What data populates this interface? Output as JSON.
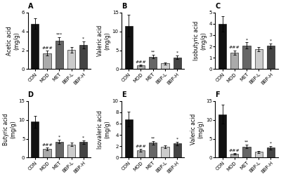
{
  "chart_data": [
    {
      "type": "bar",
      "title": "A",
      "ylabel": "Acetic acid\n(mg/g)",
      "categories": [
        "CON",
        "MOD",
        "MET",
        "BBP-L",
        "BBP-H"
      ],
      "values": [
        4.8,
        1.7,
        3.0,
        2.05,
        2.55
      ],
      "errors": [
        0.55,
        0.25,
        0.35,
        0.3,
        0.35
      ],
      "colors": [
        "#111111",
        "#aaaaaa",
        "#666666",
        "#cccccc",
        "#444444"
      ],
      "ylim": [
        0,
        6
      ],
      "yticks": [
        0,
        2,
        4,
        6
      ],
      "grid": false,
      "annotations": [
        {
          "category": "MOD",
          "text": "###"
        },
        {
          "category": "MET",
          "text": "***"
        },
        {
          "category": "BBP-H",
          "text": "*"
        }
      ]
    },
    {
      "type": "bar",
      "title": "B",
      "ylabel": "Valeric acid\n(mg/g)",
      "categories": [
        "CON",
        "MOD",
        "MET",
        "BBP-L",
        "BBP-H"
      ],
      "values": [
        11.5,
        1.0,
        3.3,
        1.5,
        3.1
      ],
      "errors": [
        2.8,
        0.2,
        0.5,
        0.3,
        0.5
      ],
      "colors": [
        "#111111",
        "#aaaaaa",
        "#666666",
        "#cccccc",
        "#444444"
      ],
      "ylim": [
        0,
        15
      ],
      "yticks": [
        0,
        5,
        10,
        15
      ],
      "grid": false,
      "annotations": [
        {
          "category": "MOD",
          "text": "###"
        },
        {
          "category": "MET",
          "text": "**"
        },
        {
          "category": "BBP-H",
          "text": "*"
        }
      ]
    },
    {
      "type": "bar",
      "title": "C",
      "ylabel": "Isobutyric acid\n(mg/g)",
      "categories": [
        "CON",
        "MOD",
        "MET",
        "BBP-L",
        "BBP-H"
      ],
      "values": [
        4.0,
        1.45,
        2.1,
        1.75,
        2.05
      ],
      "errors": [
        0.7,
        0.2,
        0.25,
        0.2,
        0.2
      ],
      "colors": [
        "#111111",
        "#aaaaaa",
        "#666666",
        "#cccccc",
        "#444444"
      ],
      "ylim": [
        0,
        5
      ],
      "yticks": [
        0,
        1,
        2,
        3,
        4,
        5
      ],
      "grid": false,
      "annotations": [
        {
          "category": "MOD",
          "text": "###"
        },
        {
          "category": "MET",
          "text": "*"
        },
        {
          "category": "BBP-H",
          "text": "*"
        }
      ]
    },
    {
      "type": "bar",
      "title": "D",
      "ylabel": "Butyric acid\n(mg/g)",
      "categories": [
        "CON",
        "MOD",
        "MET",
        "BBP-L",
        "BBP-H"
      ],
      "values": [
        9.5,
        2.3,
        4.2,
        3.5,
        4.1
      ],
      "errors": [
        1.6,
        0.3,
        0.5,
        0.4,
        0.5
      ],
      "colors": [
        "#111111",
        "#aaaaaa",
        "#666666",
        "#cccccc",
        "#444444"
      ],
      "ylim": [
        0,
        15
      ],
      "yticks": [
        0,
        5,
        10,
        15
      ],
      "grid": false,
      "annotations": [
        {
          "category": "MOD",
          "text": "###"
        },
        {
          "category": "MET",
          "text": "*"
        },
        {
          "category": "BBP-H",
          "text": "*"
        }
      ]
    },
    {
      "type": "bar",
      "title": "E",
      "ylabel": "Isovaleric acid\n(mg/g)",
      "categories": [
        "CON",
        "MOD",
        "MET",
        "BBP-L",
        "BBP-H"
      ],
      "values": [
        6.8,
        1.3,
        2.6,
        1.9,
        2.5
      ],
      "errors": [
        1.3,
        0.2,
        0.35,
        0.25,
        0.3
      ],
      "colors": [
        "#111111",
        "#aaaaaa",
        "#666666",
        "#cccccc",
        "#444444"
      ],
      "ylim": [
        0,
        10
      ],
      "yticks": [
        0,
        2,
        4,
        6,
        8,
        10
      ],
      "grid": false,
      "annotations": [
        {
          "category": "MOD",
          "text": "###"
        },
        {
          "category": "MET",
          "text": "**"
        },
        {
          "category": "BBP-H",
          "text": "*"
        }
      ]
    },
    {
      "type": "bar",
      "title": "F",
      "ylabel": "Valeric acid\n(mg/g)",
      "categories": [
        "CON",
        "MOD",
        "MET",
        "BBP-L",
        "BBP-H"
      ],
      "values": [
        11.5,
        1.0,
        2.9,
        1.5,
        2.6
      ],
      "errors": [
        2.5,
        0.2,
        0.5,
        0.25,
        0.4
      ],
      "colors": [
        "#111111",
        "#aaaaaa",
        "#666666",
        "#cccccc",
        "#444444"
      ],
      "ylim": [
        0,
        15
      ],
      "yticks": [
        0,
        5,
        10,
        15
      ],
      "grid": false,
      "annotations": [
        {
          "category": "MOD",
          "text": "###"
        },
        {
          "category": "MET",
          "text": "**"
        },
        {
          "category": "BBP-H",
          "text": "*"
        }
      ]
    }
  ]
}
